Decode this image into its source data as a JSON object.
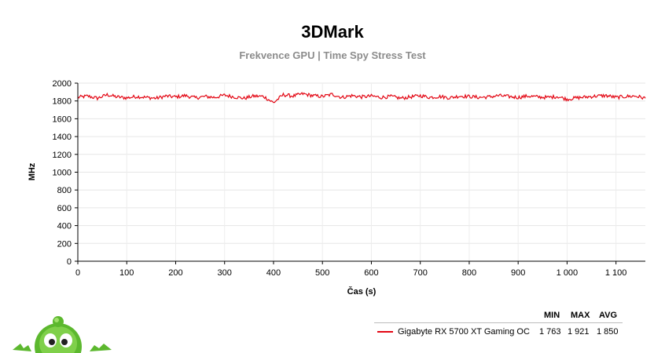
{
  "chart_data": {
    "type": "line",
    "title": "3DMark",
    "subtitle": "Frekvence GPU | Time Spy Stress Test",
    "xlabel": "Čas (s)",
    "ylabel": "MHz",
    "xlim": [
      0,
      1160
    ],
    "ylim": [
      0,
      2000
    ],
    "x_ticks": [
      0,
      100,
      200,
      300,
      400,
      500,
      600,
      700,
      800,
      900,
      1000,
      1100
    ],
    "x_tick_labels": [
      "0",
      "100",
      "200",
      "300",
      "400",
      "500",
      "600",
      "700",
      "800",
      "900",
      "1 000",
      "1 100"
    ],
    "y_ticks": [
      0,
      200,
      400,
      600,
      800,
      1000,
      1200,
      1400,
      1600,
      1800,
      2000
    ],
    "y_tick_labels": [
      "0",
      "200",
      "400",
      "600",
      "800",
      "1000",
      "1200",
      "1400",
      "1600",
      "1800",
      "2000"
    ],
    "grid": true,
    "legend_position": "bottom-right",
    "series": [
      {
        "name": "Gigabyte RX 5700 XT Gaming OC",
        "color": "#e30613",
        "x": [
          0,
          20,
          40,
          60,
          80,
          100,
          120,
          140,
          160,
          180,
          200,
          220,
          240,
          260,
          280,
          300,
          320,
          340,
          360,
          380,
          400,
          420,
          440,
          460,
          480,
          500,
          520,
          540,
          560,
          580,
          600,
          620,
          640,
          660,
          680,
          700,
          720,
          740,
          760,
          780,
          800,
          820,
          840,
          860,
          880,
          900,
          920,
          940,
          960,
          980,
          1000,
          1020,
          1040,
          1060,
          1080,
          1100,
          1120,
          1140,
          1160
        ],
        "y": [
          1840,
          1855,
          1830,
          1870,
          1845,
          1835,
          1850,
          1840,
          1830,
          1855,
          1845,
          1860,
          1835,
          1850,
          1840,
          1865,
          1845,
          1830,
          1855,
          1850,
          1780,
          1870,
          1855,
          1880,
          1860,
          1850,
          1875,
          1840,
          1860,
          1845,
          1855,
          1840,
          1850,
          1830,
          1845,
          1860,
          1840,
          1850,
          1835,
          1855,
          1850,
          1840,
          1845,
          1860,
          1850,
          1840,
          1855,
          1845,
          1840,
          1850,
          1820,
          1835,
          1845,
          1855,
          1860,
          1840,
          1850,
          1855,
          1830
        ],
        "min": "1 763",
        "max": "1 921",
        "avg": "1 850"
      }
    ]
  },
  "legend": {
    "col_min": "MIN",
    "col_max": "MAX",
    "col_avg": "AVG"
  }
}
